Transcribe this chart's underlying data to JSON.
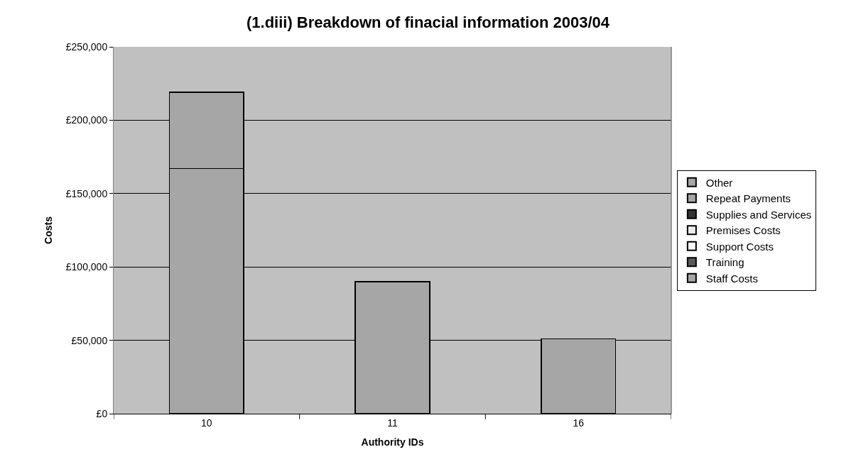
{
  "chart_data": {
    "type": "bar",
    "title": "(1.diii) Breakdown of finacial information 2003/04",
    "xlabel": "Authority IDs",
    "ylabel": "Costs",
    "categories": [
      "10",
      "11",
      "16"
    ],
    "stacked": true,
    "series": [
      {
        "name": "Staff Costs",
        "color": "#a6a6a6",
        "values": [
          167000,
          90000,
          51000
        ]
      },
      {
        "name": "Training",
        "color": "#595959",
        "values": [
          null,
          null,
          null
        ]
      },
      {
        "name": "Support Costs",
        "color": "#f7f7f7",
        "values": [
          null,
          null,
          null
        ]
      },
      {
        "name": "Premises Costs",
        "color": "#ececec",
        "values": [
          null,
          null,
          null
        ]
      },
      {
        "name": "Supplies and Services",
        "color": "#333333",
        "values": [
          null,
          null,
          null
        ]
      },
      {
        "name": "Repeat Payments",
        "color": "#a6a6a6",
        "values": [
          null,
          null,
          null
        ]
      },
      {
        "name": "Other",
        "color": "#a6a6a6",
        "values": [
          52000,
          null,
          null
        ]
      }
    ],
    "ylim": [
      0,
      250000
    ],
    "yticks": [
      {
        "value": 0,
        "label": "£0"
      },
      {
        "value": 50000,
        "label": "£50,000"
      },
      {
        "value": 100000,
        "label": "£100,000"
      },
      {
        "value": 150000,
        "label": "£150,000"
      },
      {
        "value": 200000,
        "label": "£200,000"
      },
      {
        "value": 250000,
        "label": "£250,000"
      }
    ],
    "grid": "y",
    "legend": "right"
  }
}
